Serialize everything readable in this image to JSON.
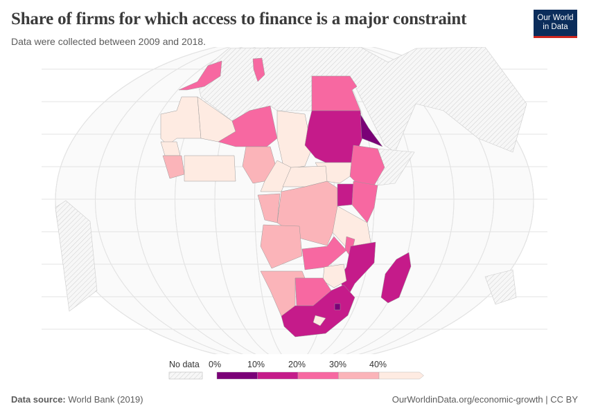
{
  "title": "Share of firms for which access to finance is a major constraint",
  "subtitle": "Data were collected between 2009 and 2018.",
  "logo": {
    "line1": "Our World",
    "line2": "in Data"
  },
  "legend": {
    "no_data_label": "No data",
    "ticks": [
      "0%",
      "10%",
      "20%",
      "30%",
      "40%"
    ],
    "bins": [
      {
        "from": 0,
        "to": 10,
        "color": "#7a0177"
      },
      {
        "from": 10,
        "to": 20,
        "color": "#c51b8a"
      },
      {
        "from": 20,
        "to": 30,
        "color": "#f768a1"
      },
      {
        "from": 30,
        "to": 40,
        "color": "#fbb4b9"
      },
      {
        "from": 40,
        "to": null,
        "color": "#feebe2"
      }
    ]
  },
  "map_fill": {
    "Morocco": "#f768a1",
    "Tunisia": "#f768a1",
    "Egypt": "#f768a1",
    "Mauritania": "#feebe2",
    "Mali": "#feebe2",
    "Niger": "#f768a1",
    "Chad": "#feebe2",
    "Sudan": "#c51b8a",
    "Eritrea": "#7a0177",
    "Ethiopia": "#f768a1",
    "South Sudan": "#feebe2",
    "Nigeria": "#fbb4b9",
    "Senegal": "#feebe2",
    "Guinea": "#fbb4b9",
    "West Coast": "#feebe2",
    "Cameroon": "#feebe2",
    "Central African Republic": "#feebe2",
    "DR Congo": "#fbb4b9",
    "Congo": "#fbb4b9",
    "Uganda": "#c51b8a",
    "Kenya": "#f768a1",
    "Tanzania": "#feebe2",
    "Angola": "#fbb4b9",
    "Zambia": "#f768a1",
    "Malawi": "#f768a1",
    "Mozambique": "#c51b8a",
    "Zimbabwe": "#feebe2",
    "Namibia": "#fbb4b9",
    "Botswana": "#f768a1",
    "South Africa": "#c51b8a",
    "Lesotho": "#feebe2",
    "Eswatini": "#7a0177",
    "Madagascar": "#c51b8a"
  },
  "footer": {
    "source_label": "Data source:",
    "source": "World Bank (2019)",
    "url": "OurWorldinData.org/economic-growth | CC BY"
  }
}
